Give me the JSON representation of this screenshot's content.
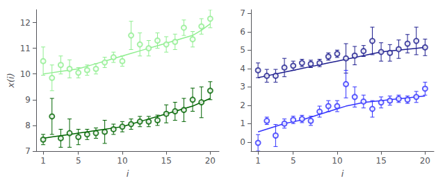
{
  "chart_data": [
    {
      "type": "scatter",
      "xlabel": "i",
      "ylabel": "x(i)",
      "x": [
        1,
        2,
        3,
        4,
        5,
        6,
        7,
        8,
        9,
        10,
        11,
        12,
        13,
        14,
        15,
        16,
        17,
        18,
        19,
        20
      ],
      "xlim": [
        0.2,
        21
      ],
      "xticks": [
        1,
        5,
        10,
        15,
        20
      ],
      "ylim": [
        7,
        12.5
      ],
      "yticks": [
        7,
        8,
        9,
        10,
        11,
        12
      ],
      "grid": false,
      "series": [
        {
          "type": "scatter",
          "color": "#90EE90",
          "values": [
            10.5,
            9.85,
            10.35,
            10.2,
            10.05,
            10.15,
            10.2,
            10.45,
            10.65,
            10.5,
            11.5,
            11.15,
            11.0,
            11.3,
            11.15,
            11.25,
            11.8,
            11.35,
            11.85,
            12.15
          ],
          "yerr": [
            0.55,
            0.5,
            0.35,
            0.35,
            0.2,
            0.2,
            0.2,
            0.2,
            0.2,
            0.2,
            0.55,
            0.45,
            0.3,
            0.3,
            0.3,
            0.3,
            0.3,
            0.3,
            0.3,
            0.35
          ]
        },
        {
          "type": "line",
          "color": "#90EE90",
          "values": [
            10.0,
            10.05,
            10.1,
            10.15,
            10.2,
            10.3,
            10.4,
            10.5,
            10.6,
            10.7,
            10.8,
            10.9,
            11.0,
            11.1,
            11.2,
            11.3,
            11.4,
            11.5,
            11.7,
            11.95
          ]
        },
        {
          "type": "scatter",
          "color": "#006400",
          "values": [
            7.45,
            8.35,
            7.5,
            7.7,
            7.55,
            7.65,
            7.7,
            7.75,
            7.85,
            7.95,
            8.05,
            8.15,
            8.15,
            8.2,
            8.45,
            8.55,
            8.6,
            9.0,
            8.9,
            9.35
          ],
          "yerr": [
            0.2,
            0.7,
            0.35,
            0.55,
            0.3,
            0.2,
            0.2,
            0.45,
            0.2,
            0.2,
            0.2,
            0.2,
            0.2,
            0.2,
            0.35,
            0.35,
            0.45,
            0.45,
            0.6,
            0.35
          ]
        },
        {
          "type": "line",
          "color": "#006400",
          "values": [
            7.5,
            7.55,
            7.6,
            7.65,
            7.7,
            7.75,
            7.8,
            7.85,
            7.9,
            7.95,
            8.05,
            8.15,
            8.25,
            8.35,
            8.45,
            8.55,
            8.65,
            8.75,
            8.9,
            9.05
          ]
        }
      ]
    },
    {
      "type": "scatter",
      "xlabel": "i",
      "x": [
        1,
        2,
        3,
        4,
        5,
        6,
        7,
        8,
        9,
        10,
        11,
        12,
        13,
        14,
        15,
        16,
        17,
        18,
        19,
        20
      ],
      "xlim": [
        0.2,
        21
      ],
      "xticks": [
        1,
        5,
        10,
        15,
        20
      ],
      "ylim": [
        -0.5,
        7.2
      ],
      "yticks": [
        0,
        1,
        2,
        3,
        4,
        5,
        6,
        7
      ],
      "grid": false,
      "series": [
        {
          "type": "scatter",
          "color": "#1f1f8f",
          "values": [
            3.9,
            3.6,
            3.6,
            4.05,
            4.15,
            4.3,
            4.25,
            4.3,
            4.65,
            4.8,
            4.55,
            4.7,
            4.95,
            5.5,
            4.9,
            4.85,
            5.05,
            5.35,
            5.5,
            5.15
          ],
          "yerr": [
            0.4,
            0.35,
            0.35,
            0.5,
            0.25,
            0.2,
            0.2,
            0.2,
            0.2,
            0.2,
            0.8,
            0.5,
            0.3,
            0.75,
            0.5,
            0.45,
            0.5,
            0.5,
            0.75,
            0.45
          ]
        },
        {
          "type": "line",
          "color": "#1f1f8f",
          "values": [
            3.5,
            3.6,
            3.7,
            3.8,
            3.9,
            4.0,
            4.1,
            4.2,
            4.3,
            4.4,
            4.5,
            4.6,
            4.7,
            4.8,
            4.9,
            4.95,
            5.0,
            5.05,
            5.1,
            5.15
          ]
        },
        {
          "type": "scatter",
          "color": "#3333FF",
          "values": [
            -0.05,
            1.15,
            0.35,
            1.0,
            1.2,
            1.25,
            1.15,
            1.65,
            1.95,
            1.95,
            3.15,
            2.45,
            2.2,
            1.8,
            2.15,
            2.25,
            2.35,
            2.3,
            2.45,
            2.9
          ],
          "yerr": [
            0.45,
            0.2,
            0.6,
            0.25,
            0.2,
            0.2,
            0.25,
            0.3,
            0.3,
            0.3,
            0.75,
            0.55,
            0.35,
            0.45,
            0.3,
            0.25,
            0.2,
            0.2,
            0.3,
            0.35
          ]
        },
        {
          "type": "line",
          "color": "#3333FF",
          "values": [
            0.55,
            0.7,
            0.85,
            1.0,
            1.1,
            1.2,
            1.35,
            1.5,
            1.65,
            1.8,
            1.95,
            2.05,
            2.15,
            2.2,
            2.25,
            2.3,
            2.35,
            2.4,
            2.45,
            2.5
          ]
        }
      ]
    }
  ]
}
